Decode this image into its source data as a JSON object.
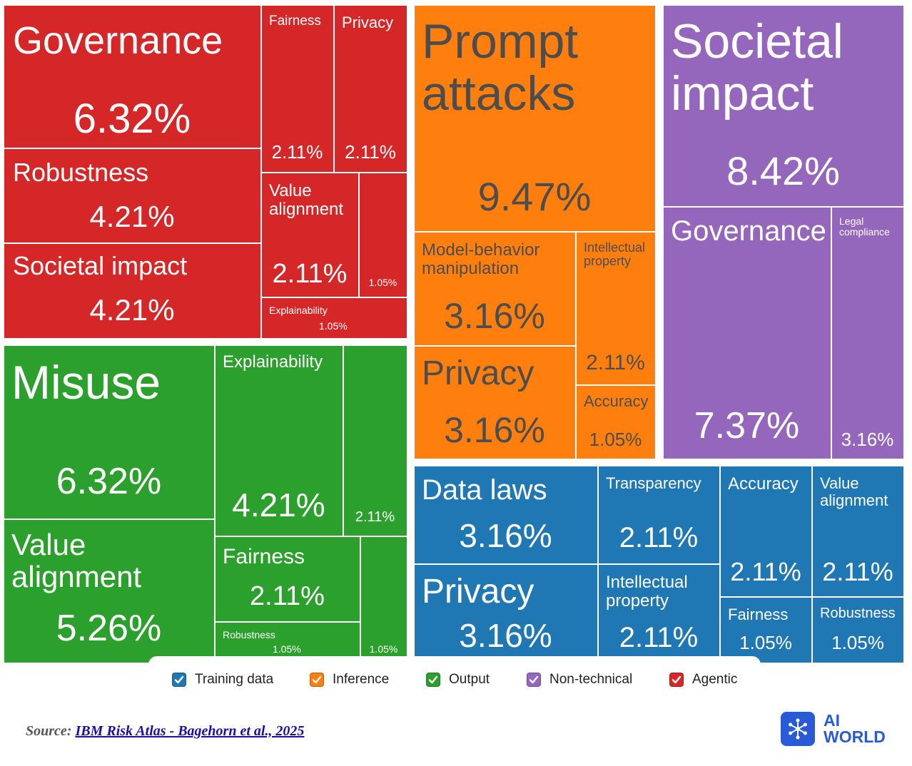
{
  "chart_data": {
    "type": "treemap",
    "groups": [
      {
        "name": "Agentic",
        "color": "#d62728",
        "items": [
          {
            "label": "Governance",
            "value": "6.32%"
          },
          {
            "label": "Robustness",
            "value": "4.21%"
          },
          {
            "label": "Societal impact",
            "value": "4.21%"
          },
          {
            "label": "Fairness",
            "value": "2.11%"
          },
          {
            "label": "Privacy",
            "value": "2.11%"
          },
          {
            "label": "Value\nalignment",
            "value": "2.11%"
          },
          {
            "label": "",
            "value": "1.05%"
          },
          {
            "label": "Explainability",
            "value": "1.05%"
          }
        ]
      },
      {
        "name": "Output",
        "color": "#2ca02c",
        "items": [
          {
            "label": "Misuse",
            "value": "6.32%"
          },
          {
            "label": "Value\nalignment",
            "value": "5.26%"
          },
          {
            "label": "Explainability",
            "value": "4.21%"
          },
          {
            "label": "",
            "value": "2.11%"
          },
          {
            "label": "Fairness",
            "value": "2.11%"
          },
          {
            "label": "Robustness",
            "value": "1.05%"
          },
          {
            "label": "",
            "value": "1.05%"
          }
        ]
      },
      {
        "name": "Inference",
        "color": "#ff7f0e",
        "items": [
          {
            "label": "Prompt\nattacks",
            "value": "9.47%"
          },
          {
            "label": "Model-behavior\nmanipulation",
            "value": "3.16%"
          },
          {
            "label": "Intellectual\nproperty",
            "value": "2.11%"
          },
          {
            "label": "Privacy",
            "value": "3.16%"
          },
          {
            "label": "Accuracy",
            "value": "1.05%"
          }
        ]
      },
      {
        "name": "Non-technical",
        "color": "#9467bd",
        "items": [
          {
            "label": "Societal\nimpact",
            "value": "8.42%"
          },
          {
            "label": "Governance",
            "value": "7.37%"
          },
          {
            "label": "Legal\ncompliance",
            "value": "3.16%"
          }
        ]
      },
      {
        "name": "Training data",
        "color": "#1f77b4",
        "items": [
          {
            "label": "Data laws",
            "value": "3.16%"
          },
          {
            "label": "Privacy",
            "value": "3.16%"
          },
          {
            "label": "Transparency",
            "value": "2.11%"
          },
          {
            "label": "Intellectual\nproperty",
            "value": "2.11%"
          },
          {
            "label": "Accuracy",
            "value": "2.11%"
          },
          {
            "label": "Value\nalignment",
            "value": "2.11%"
          },
          {
            "label": "Fairness",
            "value": "1.05%"
          },
          {
            "label": "Robustness",
            "value": "1.05%"
          }
        ]
      }
    ],
    "legend": [
      {
        "label": "Training data",
        "color": "#1f77b4"
      },
      {
        "label": "Inference",
        "color": "#ff7f0e"
      },
      {
        "label": "Output",
        "color": "#2ca02c"
      },
      {
        "label": "Non-technical",
        "color": "#9467bd"
      },
      {
        "label": "Agentic",
        "color": "#d62728"
      }
    ],
    "legend_position": "bottom"
  },
  "source": {
    "prefix": "Source: ",
    "link_text": "IBM Risk Atlas - Bagehorn et al., 2025"
  },
  "logo": {
    "line1": "AI",
    "line2": "WORLD",
    "icon": "snowflake-network-icon"
  }
}
